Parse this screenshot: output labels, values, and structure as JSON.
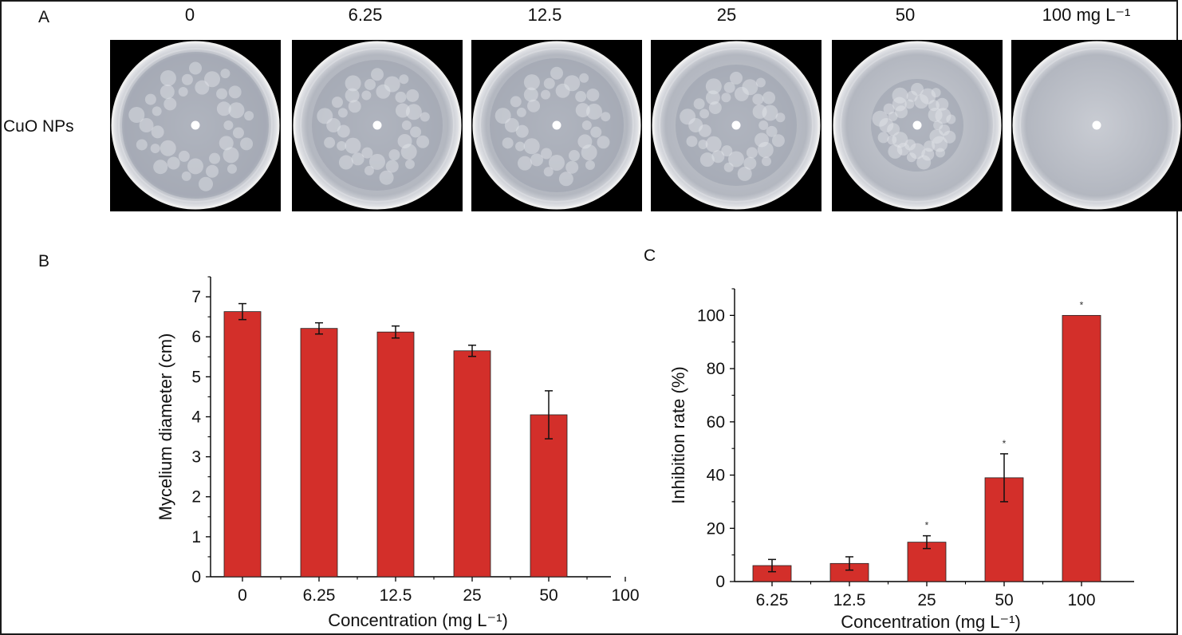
{
  "panel_a": {
    "letter": "A",
    "row_label": "CuO NPs",
    "concentrations": [
      "0",
      "6.25",
      "12.5",
      "25",
      "50",
      "100 mg L⁻¹"
    ]
  },
  "chart_data": [
    {
      "panel": "B",
      "type": "bar",
      "categories": [
        "0",
        "6.25",
        "12.5",
        "25",
        "50",
        "100"
      ],
      "values": [
        6.63,
        6.21,
        6.12,
        5.65,
        4.05,
        0
      ],
      "errors": [
        0.2,
        0.14,
        0.15,
        0.14,
        0.6,
        0
      ],
      "xlabel": "Concentration (mg L⁻¹)",
      "ylabel": "Mycelium diameter (cm)",
      "ylim": [
        0,
        7.5
      ],
      "yticks": [
        0,
        1,
        2,
        3,
        4,
        5,
        6,
        7
      ],
      "bar_color": "#d32f2a"
    },
    {
      "panel": "C",
      "type": "bar",
      "categories": [
        "6.25",
        "12.5",
        "25",
        "50",
        "100"
      ],
      "values": [
        6,
        6.8,
        14.8,
        39,
        100
      ],
      "errors": [
        2.3,
        2.5,
        2.4,
        9,
        0
      ],
      "significance": [
        "",
        "",
        "*",
        "*",
        "*"
      ],
      "xlabel": "Concentration (mg L⁻¹)",
      "ylabel": "Inhibition rate (%)",
      "ylim": [
        0,
        110
      ],
      "yticks": [
        0,
        20,
        40,
        60,
        80,
        100
      ],
      "bar_color": "#d32f2a"
    }
  ]
}
